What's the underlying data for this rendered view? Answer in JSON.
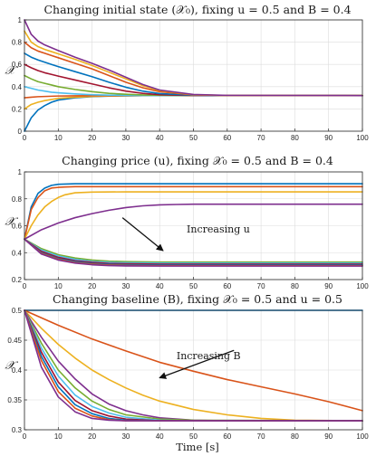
{
  "chart_data": [
    {
      "type": "line",
      "title": "Changing initial state (𝒳₀), fixing u = 0.5 and B = 0.4",
      "ylabel": "𝒳",
      "xlabel": "",
      "xlim": [
        0,
        100
      ],
      "ylim": [
        0,
        1
      ],
      "xticks": [
        "0",
        "10",
        "20",
        "30",
        "40",
        "50",
        "60",
        "70",
        "80",
        "90",
        "100"
      ],
      "yticks": [
        "0",
        "0.2",
        "0.4",
        "0.6",
        "0.8",
        "1"
      ],
      "grid": true,
      "annotation": null,
      "series": [
        {
          "color": "#0072BD",
          "x": [
            0,
            2,
            4,
            6,
            8,
            10,
            15,
            20,
            25,
            30,
            35,
            40,
            50,
            60,
            100
          ],
          "y": [
            0.0,
            0.12,
            0.19,
            0.23,
            0.26,
            0.28,
            0.3,
            0.31,
            0.315,
            0.318,
            0.32,
            0.32,
            0.32,
            0.32,
            0.32
          ]
        },
        {
          "color": "#EDB120",
          "x": [
            0,
            2,
            4,
            6,
            8,
            10,
            15,
            20,
            25,
            30,
            35,
            40,
            50,
            60,
            100
          ],
          "y": [
            0.2,
            0.24,
            0.26,
            0.275,
            0.285,
            0.295,
            0.305,
            0.312,
            0.316,
            0.318,
            0.32,
            0.32,
            0.32,
            0.32,
            0.32
          ]
        },
        {
          "color": "#D95319",
          "x": [
            0,
            2,
            4,
            6,
            8,
            10,
            15,
            20,
            25,
            30,
            35,
            40,
            50,
            60,
            100
          ],
          "y": [
            0.3,
            0.305,
            0.31,
            0.312,
            0.314,
            0.316,
            0.318,
            0.319,
            0.32,
            0.32,
            0.32,
            0.32,
            0.32,
            0.32,
            0.32
          ]
        },
        {
          "color": "#4DBEEE",
          "x": [
            0,
            2,
            4,
            6,
            8,
            10,
            15,
            20,
            25,
            30,
            35,
            40,
            50,
            60,
            100
          ],
          "y": [
            0.4,
            0.385,
            0.37,
            0.36,
            0.35,
            0.345,
            0.335,
            0.328,
            0.324,
            0.322,
            0.321,
            0.32,
            0.32,
            0.32,
            0.32
          ]
        },
        {
          "color": "#77AC30",
          "x": [
            0,
            2,
            4,
            6,
            8,
            10,
            15,
            20,
            25,
            30,
            35,
            40,
            50,
            60,
            100
          ],
          "y": [
            0.5,
            0.47,
            0.445,
            0.43,
            0.415,
            0.4,
            0.375,
            0.355,
            0.34,
            0.332,
            0.326,
            0.323,
            0.32,
            0.32,
            0.32
          ]
        },
        {
          "color": "#A2142F",
          "x": [
            0,
            2,
            4,
            6,
            8,
            10,
            15,
            20,
            25,
            30,
            35,
            40,
            50,
            60,
            100
          ],
          "y": [
            0.6,
            0.57,
            0.545,
            0.525,
            0.51,
            0.495,
            0.46,
            0.425,
            0.39,
            0.36,
            0.34,
            0.328,
            0.321,
            0.32,
            0.32
          ]
        },
        {
          "color": "#0072BD",
          "x": [
            0,
            2,
            4,
            6,
            8,
            10,
            15,
            20,
            25,
            30,
            35,
            40,
            50,
            60,
            100
          ],
          "y": [
            0.7,
            0.665,
            0.64,
            0.62,
            0.6,
            0.58,
            0.535,
            0.49,
            0.44,
            0.395,
            0.36,
            0.338,
            0.323,
            0.32,
            0.32
          ]
        },
        {
          "color": "#D95319",
          "x": [
            0,
            2,
            4,
            6,
            8,
            10,
            15,
            20,
            25,
            30,
            35,
            40,
            50,
            60,
            100
          ],
          "y": [
            0.8,
            0.75,
            0.72,
            0.7,
            0.68,
            0.66,
            0.61,
            0.56,
            0.5,
            0.44,
            0.39,
            0.355,
            0.326,
            0.321,
            0.32
          ]
        },
        {
          "color": "#EDB120",
          "x": [
            0,
            2,
            4,
            6,
            8,
            10,
            15,
            20,
            25,
            30,
            35,
            40,
            50,
            60,
            100
          ],
          "y": [
            0.9,
            0.8,
            0.76,
            0.735,
            0.715,
            0.695,
            0.645,
            0.59,
            0.53,
            0.47,
            0.41,
            0.365,
            0.328,
            0.321,
            0.32
          ]
        },
        {
          "color": "#7E2F8E",
          "x": [
            0,
            2,
            4,
            6,
            8,
            10,
            15,
            20,
            25,
            30,
            35,
            40,
            50,
            60,
            100
          ],
          "y": [
            1.0,
            0.87,
            0.81,
            0.775,
            0.75,
            0.725,
            0.665,
            0.61,
            0.55,
            0.485,
            0.42,
            0.37,
            0.33,
            0.322,
            0.32
          ]
        }
      ]
    },
    {
      "type": "line",
      "title": "Changing price (u), fixing 𝒳₀ = 0.5 and B = 0.4",
      "ylabel": "𝒳",
      "xlabel": "",
      "xlim": [
        0,
        100
      ],
      "ylim": [
        0.2,
        1
      ],
      "xticks": [
        "0",
        "10",
        "20",
        "30",
        "40",
        "50",
        "60",
        "70",
        "80",
        "90",
        "100"
      ],
      "yticks": [
        "0.2",
        "0.4",
        "0.6",
        "0.8",
        "1"
      ],
      "grid": true,
      "annotation": {
        "text": "Increasing u",
        "text_x": 48,
        "text_y": 0.55,
        "arrow_from": [
          29,
          0.66
        ],
        "arrow_to": [
          41,
          0.415
        ]
      },
      "series": [
        {
          "color": "#0072BD",
          "x": [
            0,
            2,
            4,
            6,
            8,
            10,
            12,
            15,
            20,
            30,
            40,
            60,
            100
          ],
          "y": [
            0.5,
            0.74,
            0.84,
            0.88,
            0.9,
            0.908,
            0.91,
            0.912,
            0.912,
            0.912,
            0.912,
            0.912,
            0.912
          ]
        },
        {
          "color": "#D95319",
          "x": [
            0,
            2,
            4,
            6,
            8,
            10,
            12,
            15,
            20,
            30,
            40,
            60,
            100
          ],
          "y": [
            0.5,
            0.72,
            0.81,
            0.86,
            0.88,
            0.885,
            0.888,
            0.89,
            0.89,
            0.89,
            0.89,
            0.89,
            0.89
          ]
        },
        {
          "color": "#EDB120",
          "x": [
            0,
            2,
            4,
            6,
            8,
            10,
            12,
            15,
            20,
            30,
            40,
            60,
            100
          ],
          "y": [
            0.5,
            0.6,
            0.68,
            0.74,
            0.78,
            0.81,
            0.83,
            0.845,
            0.85,
            0.852,
            0.852,
            0.852,
            0.852
          ]
        },
        {
          "color": "#7E2F8E",
          "x": [
            0,
            5,
            10,
            15,
            20,
            25,
            30,
            35,
            40,
            45,
            50,
            60,
            100
          ],
          "y": [
            0.5,
            0.57,
            0.62,
            0.66,
            0.69,
            0.715,
            0.735,
            0.748,
            0.755,
            0.758,
            0.76,
            0.76,
            0.76
          ]
        },
        {
          "color": "#77AC30",
          "x": [
            0,
            5,
            10,
            15,
            20,
            25,
            30,
            40,
            50,
            60,
            100
          ],
          "y": [
            0.5,
            0.43,
            0.385,
            0.36,
            0.345,
            0.337,
            0.333,
            0.33,
            0.33,
            0.33,
            0.33
          ]
        },
        {
          "color": "#4DBEEE",
          "x": [
            0,
            5,
            10,
            15,
            20,
            25,
            30,
            40,
            50,
            60,
            100
          ],
          "y": [
            0.5,
            0.42,
            0.375,
            0.35,
            0.335,
            0.328,
            0.325,
            0.322,
            0.322,
            0.322,
            0.322
          ]
        },
        {
          "color": "#A2142F",
          "x": [
            0,
            5,
            10,
            15,
            20,
            25,
            30,
            40,
            50,
            60,
            100
          ],
          "y": [
            0.5,
            0.41,
            0.365,
            0.34,
            0.328,
            0.32,
            0.317,
            0.315,
            0.315,
            0.315,
            0.315
          ]
        },
        {
          "color": "#0072BD",
          "x": [
            0,
            5,
            10,
            15,
            20,
            25,
            30,
            40,
            50,
            60,
            100
          ],
          "y": [
            0.5,
            0.4,
            0.355,
            0.333,
            0.32,
            0.313,
            0.31,
            0.308,
            0.308,
            0.308,
            0.308
          ]
        },
        {
          "color": "#D95319",
          "x": [
            0,
            5,
            10,
            15,
            20,
            25,
            30,
            40,
            50,
            60,
            100
          ],
          "y": [
            0.5,
            0.395,
            0.35,
            0.327,
            0.315,
            0.308,
            0.305,
            0.303,
            0.303,
            0.303,
            0.303
          ]
        },
        {
          "color": "#7E2F8E",
          "x": [
            0,
            5,
            10,
            15,
            20,
            25,
            30,
            40,
            50,
            60,
            100
          ],
          "y": [
            0.5,
            0.39,
            0.345,
            0.322,
            0.31,
            0.304,
            0.301,
            0.3,
            0.3,
            0.3,
            0.3
          ]
        }
      ]
    },
    {
      "type": "line",
      "title": "Changing baseline (B), fixing 𝒳₀ = 0.5 and u = 0.5",
      "ylabel": "𝒳",
      "xlabel": "Time [s]",
      "xlim": [
        0,
        100
      ],
      "ylim": [
        0.3,
        0.5
      ],
      "xticks": [
        "0",
        "10",
        "20",
        "30",
        "40",
        "50",
        "60",
        "70",
        "80",
        "90",
        "100"
      ],
      "yticks": [
        "0.3",
        "0.35",
        "0.4",
        "0.45",
        "0.5"
      ],
      "grid": true,
      "annotation": {
        "text": "Increasing B",
        "text_x": 45,
        "text_y": 0.418,
        "arrow_from": [
          62,
          0.433
        ],
        "arrow_to": [
          40,
          0.387
        ]
      },
      "series": [
        {
          "color": "#0072BD",
          "x": [
            0,
            100
          ],
          "y": [
            0.5,
            0.5
          ]
        },
        {
          "color": "#D95319",
          "x": [
            0,
            10,
            20,
            30,
            40,
            50,
            60,
            70,
            80,
            90,
            100
          ],
          "y": [
            0.5,
            0.475,
            0.452,
            0.432,
            0.413,
            0.398,
            0.384,
            0.372,
            0.36,
            0.347,
            0.332
          ]
        },
        {
          "color": "#EDB120",
          "x": [
            0,
            5,
            10,
            15,
            20,
            25,
            30,
            35,
            40,
            50,
            60,
            70,
            80,
            100
          ],
          "y": [
            0.5,
            0.47,
            0.443,
            0.42,
            0.4,
            0.384,
            0.37,
            0.358,
            0.348,
            0.334,
            0.325,
            0.319,
            0.316,
            0.315
          ]
        },
        {
          "color": "#7E2F8E",
          "x": [
            0,
            5,
            10,
            15,
            20,
            25,
            30,
            35,
            40,
            50,
            60,
            100
          ],
          "y": [
            0.5,
            0.455,
            0.415,
            0.385,
            0.36,
            0.343,
            0.332,
            0.325,
            0.32,
            0.316,
            0.315,
            0.315
          ]
        },
        {
          "color": "#77AC30",
          "x": [
            0,
            5,
            10,
            15,
            20,
            25,
            30,
            40,
            50,
            100
          ],
          "y": [
            0.5,
            0.445,
            0.4,
            0.37,
            0.348,
            0.334,
            0.325,
            0.318,
            0.316,
            0.315
          ]
        },
        {
          "color": "#4DBEEE",
          "x": [
            0,
            5,
            10,
            15,
            20,
            25,
            30,
            40,
            50,
            100
          ],
          "y": [
            0.5,
            0.437,
            0.39,
            0.358,
            0.339,
            0.328,
            0.321,
            0.316,
            0.315,
            0.315
          ]
        },
        {
          "color": "#A2142F",
          "x": [
            0,
            5,
            10,
            15,
            20,
            25,
            30,
            40,
            50,
            100
          ],
          "y": [
            0.5,
            0.43,
            0.38,
            0.349,
            0.332,
            0.323,
            0.318,
            0.315,
            0.315,
            0.315
          ]
        },
        {
          "color": "#0072BD",
          "x": [
            0,
            5,
            10,
            15,
            20,
            25,
            30,
            40,
            50,
            100
          ],
          "y": [
            0.5,
            0.423,
            0.372,
            0.342,
            0.327,
            0.319,
            0.316,
            0.315,
            0.315,
            0.315
          ]
        },
        {
          "color": "#D95319",
          "x": [
            0,
            5,
            10,
            15,
            20,
            25,
            30,
            40,
            50,
            100
          ],
          "y": [
            0.5,
            0.416,
            0.364,
            0.336,
            0.323,
            0.317,
            0.315,
            0.315,
            0.315,
            0.315
          ]
        },
        {
          "color": "#7E2F8E",
          "x": [
            0,
            5,
            10,
            15,
            20,
            25,
            30,
            40,
            50,
            100
          ],
          "y": [
            0.5,
            0.405,
            0.355,
            0.33,
            0.319,
            0.316,
            0.315,
            0.315,
            0.315,
            0.315
          ]
        }
      ]
    }
  ]
}
